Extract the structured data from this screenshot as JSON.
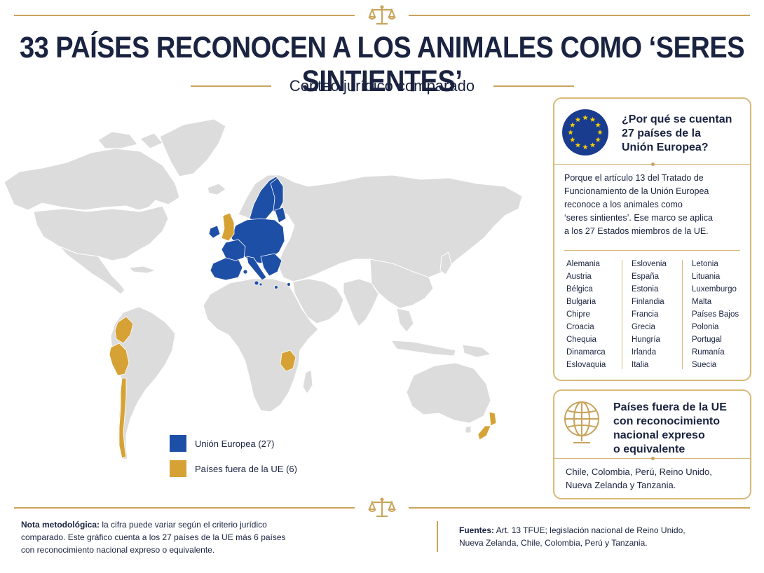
{
  "header": {
    "title": "33 PAÍSES RECONOCEN A LOS ANIMALES COMO ‘SERES SINTIENTES’",
    "subtitle": "Conteo jurídico comparado"
  },
  "legend": [
    {
      "label": "Unión Europea (27)",
      "color": "#1e4fa6"
    },
    {
      "label": "Países fuera de la UE (6)",
      "color": "#d6a235"
    }
  ],
  "colors": {
    "eu_blue": "#1e4fa6",
    "non_eu_gold": "#d6a235",
    "land_gray": "#dcdcdc",
    "accent_gold": "#c9a35a",
    "navy": "#1a2340"
  },
  "eu_card": {
    "icon": "eu-flag-icon",
    "title_lines": [
      "¿Por qué se cuentan",
      "27 países de la",
      "Unión Europea?"
    ],
    "body_lines": [
      "Porque el artículo 13 del Tratado de",
      "Funcionamiento de la Unión Europea",
      "reconoce a los animales como",
      "‘seres sintientes’. Ese marco se aplica",
      "a los 27 Estados miembros de la UE."
    ],
    "countries_col1": [
      "Alemania",
      "Austria",
      "Bélgica",
      "Bulgaria",
      "Chipre",
      "Croacia",
      "Chequia",
      "Dinamarca",
      "Eslovaquia"
    ],
    "countries_col2": [
      "Eslovenia",
      "España",
      "Estonia",
      "Finlandia",
      "Francia",
      "Grecia",
      "Hungría",
      "Irlanda",
      "Italia"
    ],
    "countries_col3": [
      "Letonia",
      "Lituania",
      "Luxemburgo",
      "Malta",
      "Países Bajos",
      "Polonia",
      "Portugal",
      "Rumanía",
      "Suecia"
    ]
  },
  "non_eu_card": {
    "icon": "globe-icon",
    "title_lines": [
      "Países fuera de la UE",
      "con reconocimiento",
      "nacional expreso",
      "o equivalente"
    ],
    "body_lines": [
      "Chile, Colombia, Perú, Reino Unido,",
      "Nueva Zelanda y Tanzania."
    ]
  },
  "footer": {
    "note_label": "Nota metodológica:",
    "note_lines": [
      "la cifra puede variar según el criterio jurídico",
      "comparado. Este gráfico cuenta a los 27 países de la UE más 6 países",
      "con reconocimiento nacional expreso o equivalente."
    ],
    "sources_label": "Fuentes:",
    "sources_lines": [
      "Art. 13 TFUE; legislación nacional de Reino Unido,",
      "Nueva Zelanda, Chile, Colombia, Perú y Tanzania."
    ]
  }
}
